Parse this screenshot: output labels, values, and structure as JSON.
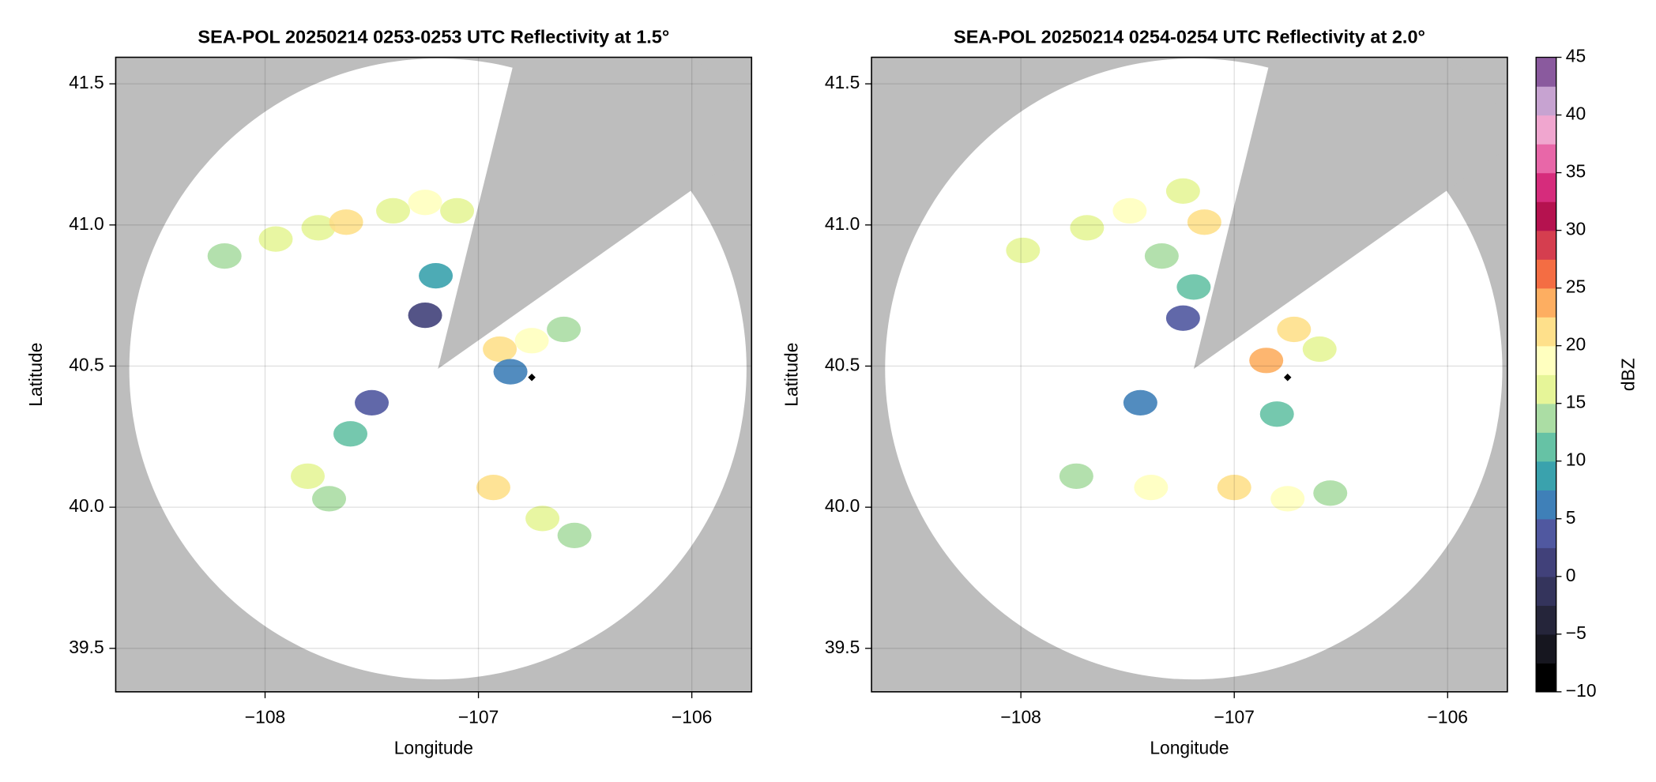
{
  "chart_data": [
    {
      "type": "ppi",
      "title": "SEA-POL 20250214 0253-0253 UTC Reflectivity at 1.5°",
      "xlabel": "Longitude",
      "ylabel": "Latitude",
      "xlim": [
        -108.7,
        -105.72
      ],
      "ylim": [
        39.346,
        41.594
      ],
      "xticks": [
        {
          "value": -108,
          "label": "−108"
        },
        {
          "value": -107,
          "label": "−107"
        },
        {
          "value": -106,
          "label": "−106"
        }
      ],
      "yticks": [
        39.5,
        {
          "value": 40,
          "label": "40.0"
        },
        40.5,
        {
          "value": 41,
          "label": "41.0"
        },
        41.5
      ],
      "grid": true,
      "coverage": {
        "center_lon": -107.19,
        "center_lat": 40.49,
        "radius_deg_lat": 1.1,
        "blocked_azimuths": [
          14,
          55
        ]
      },
      "marker": {
        "lon": -106.75,
        "lat": 40.46
      },
      "echoes": {
        "lon": [
          -107.95,
          -107.75,
          -107.62,
          -108.19,
          -107.4,
          -107.25,
          -107.1,
          -107.2,
          -107.25,
          -106.9,
          -106.75,
          -106.6,
          -106.85,
          -107.5,
          -107.6,
          -107.8,
          -107.7,
          -106.93,
          -106.7,
          -106.55
        ],
        "lat": [
          40.95,
          40.99,
          41.01,
          40.89,
          41.05,
          41.08,
          41.05,
          40.82,
          40.68,
          40.56,
          40.59,
          40.63,
          40.48,
          40.37,
          40.26,
          40.11,
          40.03,
          40.07,
          39.96,
          39.9
        ],
        "dbz": [
          17,
          15,
          20,
          14,
          16,
          18,
          15,
          8,
          2,
          22,
          18,
          14,
          5,
          3,
          10,
          15,
          14,
          20,
          16,
          14
        ]
      }
    },
    {
      "type": "ppi",
      "title": "SEA-POL 20250214 0254-0254 UTC Reflectivity at 2.0°",
      "xlabel": "Longitude",
      "ylabel": "Latitude",
      "xlim": [
        -108.7,
        -105.72
      ],
      "ylim": [
        39.346,
        41.594
      ],
      "xticks": [
        {
          "value": -108,
          "label": "−108"
        },
        {
          "value": -107,
          "label": "−107"
        },
        {
          "value": -106,
          "label": "−106"
        }
      ],
      "yticks": [
        39.5,
        {
          "value": 40,
          "label": "40.0"
        },
        40.5,
        {
          "value": 41,
          "label": "41.0"
        },
        41.5
      ],
      "grid": true,
      "coverage": {
        "center_lon": -107.19,
        "center_lat": 40.49,
        "radius_deg_lat": 1.1,
        "blocked_azimuths": [
          14,
          55
        ]
      },
      "marker": {
        "lon": -106.75,
        "lat": 40.46
      },
      "echoes": {
        "lon": [
          -107.99,
          -107.69,
          -107.49,
          -107.24,
          -107.14,
          -107.34,
          -107.19,
          -107.24,
          -106.85,
          -106.72,
          -106.6,
          -106.8,
          -107.44,
          -107.74,
          -107.39,
          -107.0,
          -106.75,
          -106.55
        ],
        "lat": [
          40.91,
          40.99,
          41.05,
          41.12,
          41.01,
          40.89,
          40.78,
          40.67,
          40.52,
          40.63,
          40.56,
          40.33,
          40.37,
          40.11,
          40.07,
          40.07,
          40.03,
          40.05
        ],
        "dbz": [
          16,
          17,
          18,
          17,
          22,
          14,
          12,
          3,
          24,
          20,
          16,
          12,
          6,
          14,
          18,
          22,
          18,
          14
        ]
      },
      "colorbar": {
        "label": "dBZ",
        "lim": [
          -10,
          45
        ],
        "ticks": [
          {
            "value": -10,
            "label": "−10"
          },
          {
            "value": -5,
            "label": "−5"
          },
          0,
          5,
          10,
          15,
          20,
          25,
          30,
          35,
          40,
          45
        ],
        "colors": [
          "#000000",
          "#16161f",
          "#25253a",
          "#34345c",
          "#41417a",
          "#5058a0",
          "#3f80b8",
          "#3aa2ad",
          "#66c2a5",
          "#abdda4",
          "#e6f598",
          "#ffffbf",
          "#fee08b",
          "#fdae61",
          "#f46d43",
          "#d53e4f",
          "#b5124f",
          "#d62c7c",
          "#e867a8",
          "#f0a6cf",
          "#c7a3d1",
          "#8a5a9e"
        ]
      }
    }
  ]
}
